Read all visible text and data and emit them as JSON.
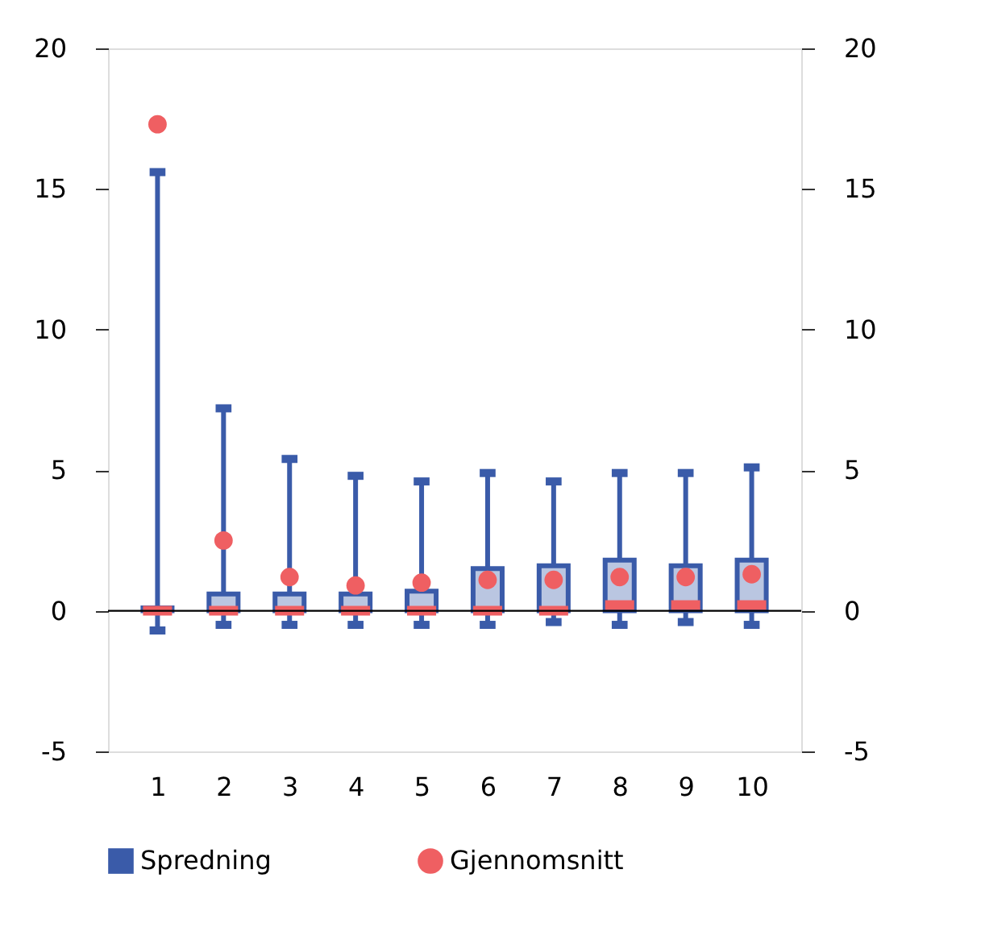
{
  "chart_data": {
    "type": "box",
    "categories": [
      "1",
      "2",
      "3",
      "4",
      "5",
      "6",
      "7",
      "8",
      "9",
      "10"
    ],
    "series": [
      {
        "name": "Spredning",
        "type": "box",
        "color": "#3a5ba9",
        "boxes": [
          {
            "low": -0.7,
            "q1": 0,
            "median": 0,
            "q3": 0.1,
            "high": 15.6
          },
          {
            "low": -0.5,
            "q1": 0,
            "median": 0,
            "q3": 0.6,
            "high": 7.2
          },
          {
            "low": -0.5,
            "q1": 0,
            "median": 0,
            "q3": 0.6,
            "high": 5.4
          },
          {
            "low": -0.5,
            "q1": 0,
            "median": 0,
            "q3": 0.6,
            "high": 4.8
          },
          {
            "low": -0.5,
            "q1": 0,
            "median": 0,
            "q3": 0.7,
            "high": 4.6
          },
          {
            "low": -0.5,
            "q1": 0,
            "median": 0,
            "q3": 1.5,
            "high": 4.9
          },
          {
            "low": -0.4,
            "q1": 0,
            "median": 0,
            "q3": 1.6,
            "high": 4.6
          },
          {
            "low": -0.5,
            "q1": 0,
            "median": 0.2,
            "q3": 1.8,
            "high": 4.9
          },
          {
            "low": -0.4,
            "q1": 0,
            "median": 0.2,
            "q3": 1.6,
            "high": 4.9
          },
          {
            "low": -0.5,
            "q1": 0,
            "median": 0.2,
            "q3": 1.8,
            "high": 5.1
          }
        ]
      },
      {
        "name": "Gjennomsnitt",
        "type": "scatter",
        "color": "#ef5f62",
        "marker": "circle",
        "x": [
          "1",
          "2",
          "3",
          "4",
          "5",
          "6",
          "7",
          "8",
          "9",
          "10"
        ],
        "values": [
          17.3,
          2.5,
          1.2,
          0.9,
          1.0,
          1.1,
          1.1,
          1.2,
          1.2,
          1.3
        ]
      }
    ],
    "ylim": [
      -5,
      20
    ],
    "yticks": [
      -5,
      0,
      5,
      10,
      15,
      20
    ],
    "y2lim": [
      -5,
      20
    ],
    "y2ticks": [
      -5,
      0,
      5,
      10,
      15,
      20
    ],
    "ref_lines": [
      {
        "axis": "y",
        "value": 0,
        "color": "#000000"
      }
    ],
    "grid": false,
    "legend": "bottom"
  }
}
